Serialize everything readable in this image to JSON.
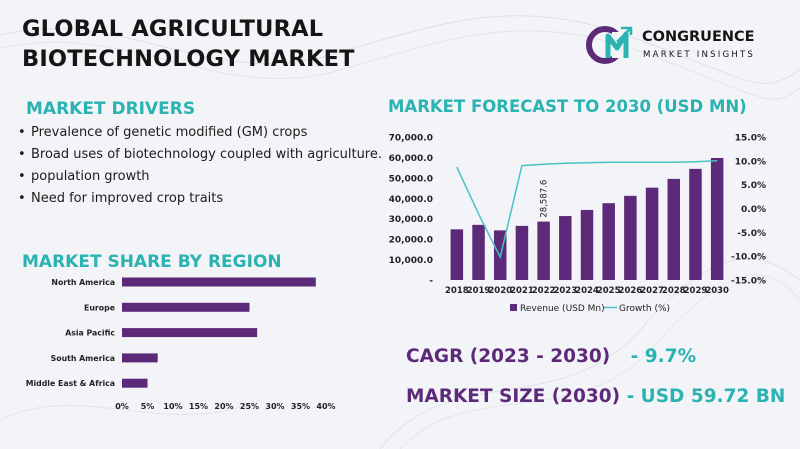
{
  "title": {
    "line1": "GLOBAL AGRICULTURAL",
    "line2": "BIOTECHNOLOGY MARKET"
  },
  "logo": {
    "mark": "CM",
    "name": "CONGRUENCE",
    "tagline": "MARKET INSIGHTS"
  },
  "drivers": {
    "heading": "MARKET DRIVERS",
    "items": [
      "Prevalence of genetic modified (GM) crops",
      "Broad uses of biotechnology coupled with agriculture.",
      "population growth",
      "Need for improved crop traits"
    ]
  },
  "kpis": {
    "cagr_label": "CAGR (2023 - 2030)",
    "cagr_value": "- 9.7%",
    "market_size_label": "MARKET SIZE (2030)",
    "market_size_value": "- USD 59.72 BN"
  },
  "colors": {
    "purple": "#5d2a7a",
    "teal": "#2bb3b1",
    "growth_line": "#49c2c4"
  },
  "chart_data": [
    {
      "type": "bar+line",
      "title": "MARKET FORECAST TO 2030 (USD MN)",
      "categories": [
        "2018",
        "2019",
        "2020",
        "2021",
        "2022",
        "2023",
        "2024",
        "2025",
        "2026",
        "2027",
        "2028",
        "2029",
        "2030"
      ],
      "series": [
        {
          "name": "Revenue (USD Mn)",
          "type": "bar",
          "axis": "left",
          "values": [
            24800,
            27000,
            24300,
            26500,
            28587.6,
            31300,
            34300,
            37600,
            41200,
            45200,
            49500,
            54400,
            59720
          ]
        },
        {
          "name": "Growth (%)",
          "type": "line",
          "axis": "right",
          "values": [
            8.7,
            -1.1,
            -10.2,
            9.0,
            9.3,
            9.5,
            9.6,
            9.7,
            9.7,
            9.7,
            9.7,
            9.8,
            10.0
          ]
        }
      ],
      "data_labels": [
        {
          "category": "2022",
          "text": "28,587.6"
        }
      ],
      "y_left": {
        "range": [
          0,
          70000
        ],
        "ticks": [
          "70,000.0",
          "60,000.0",
          "50,000.0",
          "40,000.0",
          "30,000.0",
          "20,000.0",
          "10,000.0",
          "-"
        ]
      },
      "y_right": {
        "range": [
          -15,
          15
        ],
        "ticks": [
          "15.0%",
          "10.0%",
          "5.0%",
          "0.0%",
          "-5.0%",
          "-10.0%",
          "-15.0%"
        ]
      },
      "legend": [
        "Revenue (USD Mn)",
        "Growth (%)"
      ],
      "legend_position": "bottom",
      "grid": false
    },
    {
      "type": "bar",
      "orientation": "horizontal",
      "title": "MARKET SHARE BY REGION",
      "categories": [
        "North America",
        "Europe",
        "Asia Pacific",
        "South America",
        "Middle East & Africa"
      ],
      "values": [
        38,
        25,
        26.5,
        7,
        5
      ],
      "x_range": [
        0,
        40
      ],
      "x_ticks": [
        "0%",
        "5%",
        "10%",
        "15%",
        "20%",
        "25%",
        "30%",
        "35%",
        "40%"
      ],
      "grid": false
    }
  ]
}
